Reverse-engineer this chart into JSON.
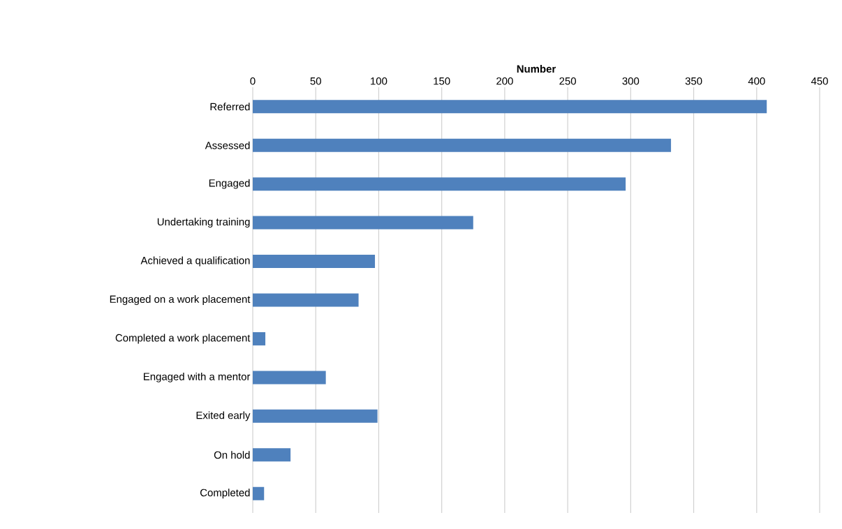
{
  "chart_data": {
    "type": "bar",
    "orientation": "horizontal",
    "xlabel": "Number",
    "categories": [
      "Referred",
      "Assessed",
      "Engaged",
      "Undertaking training",
      "Achieved a qualification",
      "Engaged on a work placement",
      "Completed a work placement",
      "Engaged with a mentor",
      "Exited early",
      "On hold",
      "Completed"
    ],
    "values": [
      408,
      332,
      296,
      175,
      97,
      84,
      10,
      58,
      99,
      30,
      9
    ],
    "color": "#4f81bd",
    "xlim": [
      0,
      450
    ],
    "xticks": [
      0,
      50,
      100,
      150,
      200,
      250,
      300,
      350,
      400,
      450
    ],
    "grid": "x"
  }
}
